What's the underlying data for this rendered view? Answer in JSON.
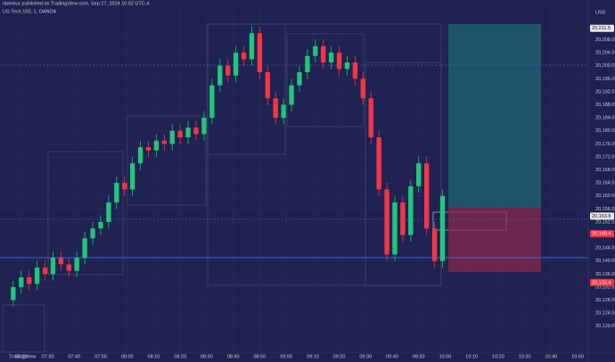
{
  "chart_data": {
    "type": "candlestick",
    "title": "US Tech 100, 1, OANDA",
    "subtitle": "nbenkur published on TradingView.com, Sep 27, 2024 10:02 UTC-4",
    "currency": "USD",
    "brand": "TradingView",
    "x": [
      "07:17",
      "07:20",
      "07:23",
      "07:26",
      "07:29",
      "07:32",
      "07:35",
      "07:38",
      "07:41",
      "07:44",
      "07:47",
      "07:50",
      "07:53",
      "07:56",
      "07:59",
      "08:02",
      "08:05",
      "08:08",
      "08:11",
      "08:14",
      "08:17",
      "08:20",
      "08:23",
      "08:26",
      "08:29",
      "08:32",
      "08:35",
      "08:38",
      "08:41",
      "08:44",
      "08:47",
      "08:50",
      "08:53",
      "08:56",
      "08:59",
      "09:02",
      "09:05",
      "09:08",
      "09:11",
      "09:14",
      "09:17",
      "09:20",
      "09:23",
      "09:26",
      "09:29",
      "09:32",
      "09:35",
      "09:38",
      "09:41",
      "09:44",
      "09:47",
      "09:50",
      "09:53",
      "09:56",
      "09:59"
    ],
    "open": [
      20128,
      20132,
      20135,
      20133,
      20138,
      20136,
      20141,
      20139,
      20137,
      20141,
      20147,
      20150,
      20152,
      20158,
      20164,
      20162,
      20170,
      20175,
      20174,
      20177,
      20176,
      20180,
      20178,
      20181,
      20179,
      20184,
      20194,
      20200,
      20197,
      20204,
      20202,
      20210,
      20198,
      20190,
      20184,
      20188,
      20194,
      20198,
      20203,
      20206,
      20201,
      20204,
      20199,
      20201,
      20196,
      20190,
      20178,
      20162,
      20142,
      20158,
      20148,
      20163,
      20170,
      20150,
      20140
    ],
    "high": [
      20134,
      20137,
      20137,
      20140,
      20140,
      20143,
      20143,
      20141,
      20143,
      20149,
      20152,
      20154,
      20160,
      20166,
      20166,
      20172,
      20177,
      20177,
      20179,
      20179,
      20182,
      20182,
      20183,
      20183,
      20186,
      20196,
      20202,
      20202,
      20206,
      20206,
      20212,
      20212,
      20200,
      20192,
      20190,
      20196,
      20200,
      20205,
      20208,
      20208,
      20206,
      20206,
      20203,
      20203,
      20198,
      20192,
      20180,
      20164,
      20160,
      20160,
      20165,
      20172,
      20172,
      20152,
      20162
    ],
    "low": [
      20126,
      20130,
      20131,
      20131,
      20134,
      20134,
      20137,
      20135,
      20135,
      20139,
      20145,
      20148,
      20150,
      20156,
      20160,
      20160,
      20168,
      20172,
      20172,
      20174,
      20174,
      20176,
      20176,
      20177,
      20177,
      20182,
      20192,
      20195,
      20195,
      20200,
      20200,
      20196,
      20188,
      20182,
      20182,
      20186,
      20192,
      20196,
      20201,
      20199,
      20199,
      20197,
      20197,
      20194,
      20188,
      20176,
      20160,
      20140,
      20140,
      20146,
      20146,
      20161,
      20148,
      20138,
      20138
    ],
    "close": [
      20132,
      20135,
      20133,
      20138,
      20136,
      20141,
      20139,
      20137,
      20141,
      20147,
      20150,
      20152,
      20158,
      20164,
      20162,
      20170,
      20175,
      20174,
      20177,
      20176,
      20180,
      20178,
      20181,
      20179,
      20184,
      20194,
      20200,
      20197,
      20204,
      20202,
      20210,
      20198,
      20190,
      20184,
      20188,
      20194,
      20198,
      20203,
      20206,
      20201,
      20204,
      20199,
      20201,
      20196,
      20190,
      20178,
      20162,
      20142,
      20158,
      20148,
      20163,
      20170,
      20150,
      20140,
      20160
    ],
    "up_color": "#22c57a",
    "down_color": "#f23645",
    "xlim": [
      "07:12",
      "10:54"
    ],
    "xticks": [
      "07:20",
      "07:30",
      "07:40",
      "07:50",
      "08:00",
      "08:10",
      "08:20",
      "08:30",
      "08:40",
      "08:50",
      "09:00",
      "09:10",
      "09:20",
      "09:30",
      "09:40",
      "09:50",
      "10:00",
      "10:10",
      "10:20",
      "10:30",
      "10:40",
      "10:50"
    ],
    "ylim": [
      20112,
      20218
    ],
    "yticks": [
      {
        "value": 20120,
        "label": "20,120.0"
      },
      {
        "value": 20124,
        "label": "20,124.0"
      },
      {
        "value": 20128,
        "label": "20,128.0"
      },
      {
        "value": 20132,
        "label": "20,132.0"
      },
      {
        "value": 20136,
        "label": "20,136.0"
      },
      {
        "value": 20140,
        "label": "20,140.0"
      },
      {
        "value": 20144,
        "label": "20,144.0"
      },
      {
        "value": 20152,
        "label": "20,152.0"
      },
      {
        "value": 20156,
        "label": "20,156.0"
      },
      {
        "value": 20160,
        "label": "20,160.0"
      },
      {
        "value": 20164,
        "label": "20,164.0"
      },
      {
        "value": 20168,
        "label": "20,168.0"
      },
      {
        "value": 20172,
        "label": "20,172.0"
      },
      {
        "value": 20176,
        "label": "20,176.0"
      },
      {
        "value": 20180,
        "label": "20,180.0"
      },
      {
        "value": 20184,
        "label": "20,184.0"
      },
      {
        "value": 20188,
        "label": "20,188.0"
      },
      {
        "value": 20192,
        "label": "20,192.0"
      },
      {
        "value": 20196,
        "label": "20,196.0"
      },
      {
        "value": 20200,
        "label": "20,200.0"
      },
      {
        "value": 20204,
        "label": "20,204.0"
      },
      {
        "value": 20208,
        "label": "20,208.0"
      }
    ],
    "price_labels": [
      {
        "value": 20211.5,
        "label": "20,211.5",
        "color": "#e6e6e6"
      },
      {
        "value": 20153.8,
        "label": "20,153.8",
        "color": "#e6e6e6"
      },
      {
        "value": 20148.4,
        "label": "20,148.4",
        "color": "#f23645"
      },
      {
        "value": 20133.4,
        "label": "20,133.4",
        "color": "#f23645"
      }
    ]
  }
}
